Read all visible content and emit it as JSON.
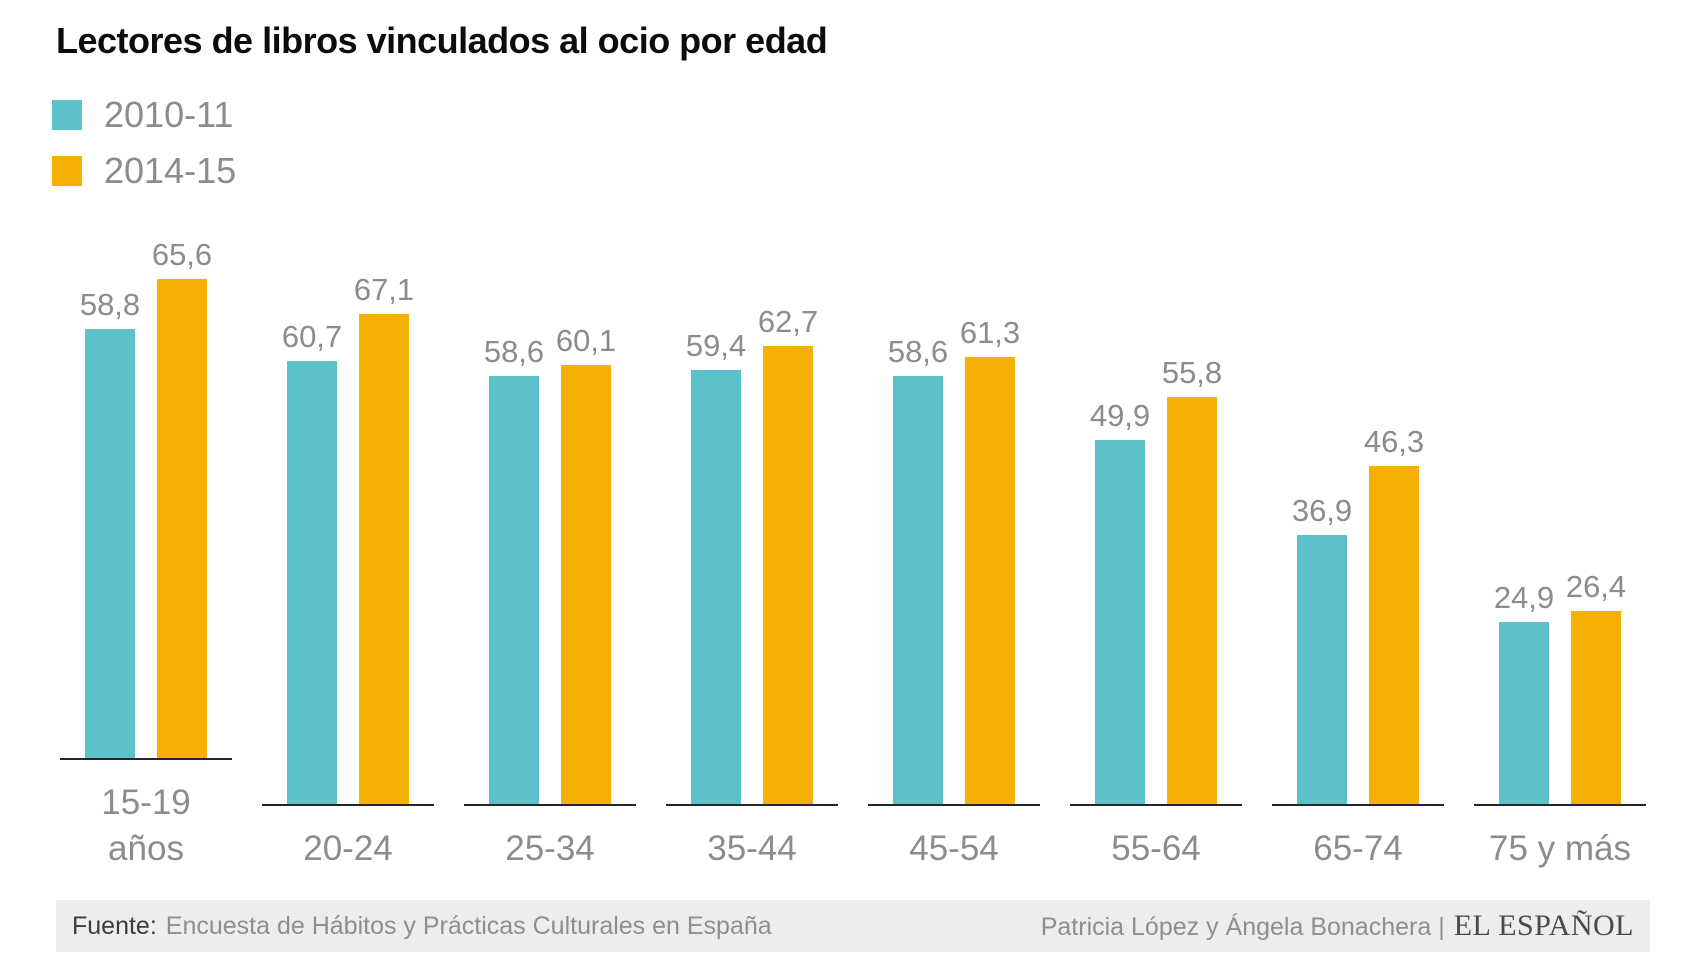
{
  "title": "Lectores de libros vinculados al ocio por edad",
  "chart_data": {
    "type": "bar",
    "categories": [
      "15-19\naños",
      "20-24",
      "25-34",
      "35-44",
      "45-54",
      "55-64",
      "65-74",
      "75 y más"
    ],
    "series": [
      {
        "name": "2010-11",
        "color": "#5bc2cc",
        "values": [
          58.8,
          60.7,
          58.6,
          59.4,
          58.6,
          49.9,
          36.9,
          24.9
        ]
      },
      {
        "name": "2014-15",
        "color": "#f4b104",
        "values": [
          65.6,
          67.1,
          60.1,
          62.7,
          61.3,
          55.8,
          46.3,
          26.4
        ]
      }
    ],
    "title": "Lectores de libros vinculados al ocio por edad",
    "xlabel": "",
    "ylabel": "",
    "ylim": [
      0,
      70
    ],
    "grid": false,
    "legend_position": "top-left",
    "value_label_format": "decimal-comma",
    "value_labels_shown": true
  },
  "colors": {
    "series_2010_11": "#5bc2cc",
    "series_2014_15": "#f4b104",
    "value_label": "#8c8c8c",
    "axis_label": "#8c8c8c",
    "baseline": "#262626",
    "footer_bg": "#ededee"
  },
  "footer": {
    "source_label": "Fuente:",
    "source_text": "Encuesta de Hábitos y Prácticas Culturales en España",
    "credits": "Patricia López y Ángela Bonachera |",
    "brand": "EL ESPAÑOL"
  }
}
